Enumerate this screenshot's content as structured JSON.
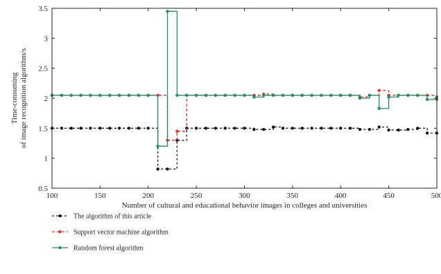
{
  "chart_data": {
    "type": "line",
    "xlabel": "Number of cultural and educational behavior images in colleges and universities",
    "ylabel_line1": "Time-consuming",
    "ylabel_line2": "of image recognition algorithm/s",
    "xlim": [
      100,
      500
    ],
    "ylim": [
      0.5,
      3.5
    ],
    "xticks": [
      "100",
      "150",
      "200",
      "250",
      "300",
      "350",
      "400",
      "450",
      "500"
    ],
    "yticks": [
      "0.5",
      "1",
      "1.5",
      "2",
      "2.5",
      "3",
      "3.5"
    ],
    "x": [
      100,
      110,
      120,
      130,
      140,
      150,
      160,
      170,
      180,
      190,
      200,
      210,
      220,
      230,
      240,
      250,
      260,
      270,
      280,
      290,
      300,
      310,
      320,
      330,
      340,
      350,
      360,
      370,
      380,
      390,
      400,
      410,
      420,
      430,
      440,
      450,
      460,
      470,
      480,
      490,
      500
    ],
    "series": [
      {
        "name": "The algorithm of this article",
        "color": "#111111",
        "dash": "3,3",
        "values": [
          1.5,
          1.5,
          1.5,
          1.5,
          1.5,
          1.5,
          1.5,
          1.5,
          1.5,
          1.5,
          1.5,
          0.82,
          0.82,
          1.3,
          1.5,
          1.5,
          1.5,
          1.5,
          1.5,
          1.5,
          1.5,
          1.48,
          1.48,
          1.52,
          1.5,
          1.5,
          1.5,
          1.5,
          1.5,
          1.5,
          1.5,
          1.5,
          1.48,
          1.48,
          1.52,
          1.47,
          1.47,
          1.48,
          1.5,
          1.42,
          1.42
        ]
      },
      {
        "name": "Support vector machine algorithm",
        "color": "#e0302a",
        "dash": "4,3",
        "values": [
          2.05,
          2.05,
          2.05,
          2.05,
          2.05,
          2.05,
          2.05,
          2.05,
          2.05,
          2.05,
          2.05,
          2.05,
          1.3,
          1.45,
          2.05,
          2.05,
          2.05,
          2.05,
          2.05,
          2.05,
          2.05,
          2.05,
          2.07,
          2.05,
          2.05,
          2.05,
          2.05,
          2.05,
          2.05,
          2.05,
          2.05,
          2.05,
          2.02,
          2.05,
          2.13,
          2.05,
          2.05,
          2.05,
          2.05,
          2.05,
          1.98
        ]
      },
      {
        "name": "Random forest algorithm",
        "color": "#1f8f5f",
        "dash": "",
        "values": [
          2.05,
          2.05,
          2.05,
          2.05,
          2.05,
          2.05,
          2.05,
          2.05,
          2.05,
          2.05,
          2.05,
          1.2,
          3.45,
          2.05,
          2.05,
          2.05,
          2.05,
          2.05,
          2.05,
          2.05,
          2.05,
          2.02,
          2.05,
          2.05,
          2.05,
          2.05,
          2.05,
          2.05,
          2.05,
          2.05,
          2.05,
          2.05,
          2.0,
          2.05,
          1.83,
          2.02,
          2.05,
          2.05,
          2.05,
          1.98,
          2.02
        ]
      }
    ],
    "grid": false,
    "legend_position": "bottom-left"
  }
}
